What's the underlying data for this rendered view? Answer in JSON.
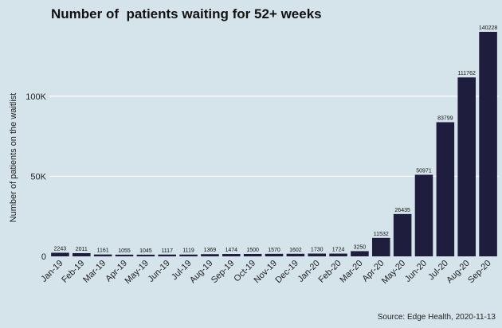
{
  "chart_data": {
    "type": "bar",
    "title": "Number of  patients waiting for 52+ weeks",
    "ylabel": "Number of patients on the waitlist",
    "xlabel": "",
    "source": "Source: Edge Health, 2020-11-13",
    "categories": [
      "Jan-19",
      "Feb-19",
      "Mar-19",
      "Apr-19",
      "May-19",
      "Jun-19",
      "Jul-19",
      "Aug-19",
      "Sep-19",
      "Oct-19",
      "Nov-19",
      "Dec-19",
      "Jan-20",
      "Feb-20",
      "Mar-20",
      "Apr-20",
      "May-20",
      "Jun-20",
      "Jul-20",
      "Aug-20",
      "Sep-20"
    ],
    "values": [
      2243,
      2011,
      1161,
      1055,
      1045,
      1117,
      1119,
      1369,
      1474,
      1500,
      1570,
      1602,
      1730,
      1724,
      3250,
      11532,
      26435,
      50971,
      83799,
      111762,
      140228
    ],
    "ylim": [
      0,
      140228
    ],
    "yticks": [
      0,
      50000,
      100000
    ],
    "ytick_labels": [
      "0",
      "50K",
      "100K"
    ],
    "grid": true,
    "bar_color": "#1f1d3d",
    "grid_color": "#ffffff",
    "background": "#d5e4eb"
  }
}
